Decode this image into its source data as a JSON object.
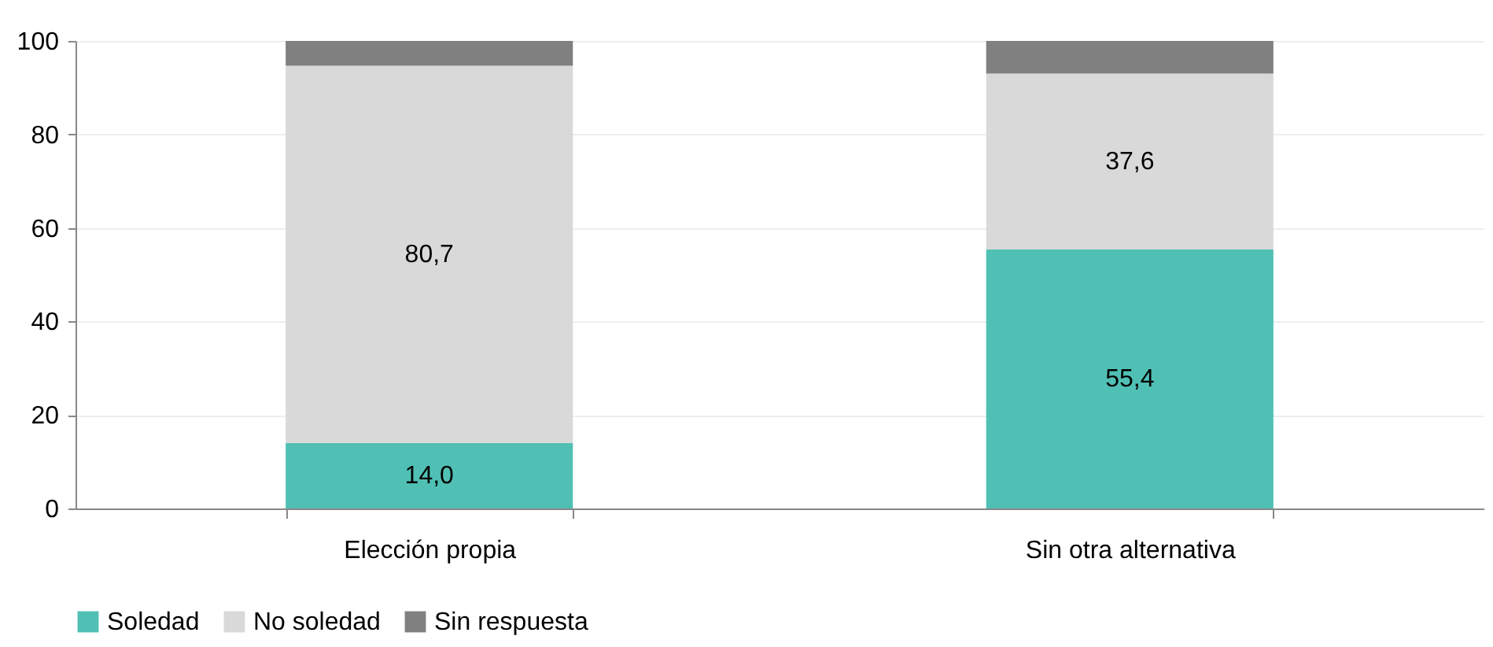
{
  "chart_data": {
    "type": "bar",
    "stacked": true,
    "categories": [
      "Elección propia",
      "Sin otra alternativa"
    ],
    "series": [
      {
        "name": "Soledad",
        "color": "#50c0b5",
        "values": [
          14.0,
          55.4
        ],
        "value_labels": [
          "14,0",
          "55,4"
        ]
      },
      {
        "name": "No soledad",
        "color": "#d9d9d9",
        "values": [
          80.7,
          37.6
        ],
        "value_labels": [
          "80,7",
          "37,6"
        ]
      },
      {
        "name": "Sin respuesta",
        "color": "#808080",
        "values": [
          5.3,
          7.0
        ],
        "value_labels": [
          null,
          null
        ]
      }
    ],
    "ylim": [
      0,
      100
    ],
    "yticks": [
      0,
      20,
      40,
      60,
      80,
      100
    ],
    "grid": "y",
    "legend": "bottom"
  }
}
